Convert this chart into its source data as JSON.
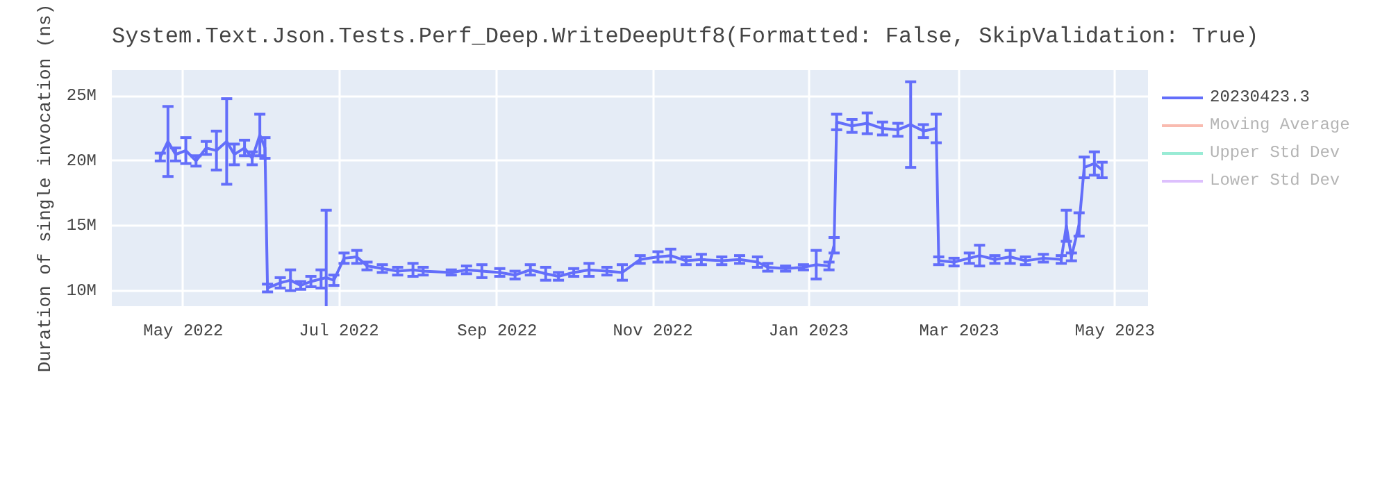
{
  "chart_data": {
    "type": "line",
    "title": "System.Text.Json.Tests.Perf_Deep.WriteDeepUtf8(Formatted: False, SkipValidation: True)",
    "ylabel": "Duration of single invocation (ns)",
    "xlim": [
      "2022-04-03",
      "2023-05-14"
    ],
    "ylim": [
      8800000,
      27000000
    ],
    "xticks": [
      {
        "value": "2022-05-01",
        "label": "May 2022"
      },
      {
        "value": "2022-07-01",
        "label": "Jul 2022"
      },
      {
        "value": "2022-09-01",
        "label": "Sep 2022"
      },
      {
        "value": "2022-11-01",
        "label": "Nov 2022"
      },
      {
        "value": "2023-01-01",
        "label": "Jan 2023"
      },
      {
        "value": "2023-03-01",
        "label": "Mar 2023"
      },
      {
        "value": "2023-05-01",
        "label": "May 2023"
      }
    ],
    "yticks": [
      {
        "value": 10000000,
        "label": "10M"
      },
      {
        "value": 15000000,
        "label": "15M"
      },
      {
        "value": 20000000,
        "label": "20M"
      },
      {
        "value": 25000000,
        "label": "25M"
      }
    ],
    "grid": true,
    "legend": "right",
    "marker": "none",
    "line_style": "solid",
    "x": [
      "2022-04-22",
      "2022-04-25",
      "2022-04-28",
      "2022-05-02",
      "2022-05-06",
      "2022-05-10",
      "2022-05-14",
      "2022-05-18",
      "2022-05-21",
      "2022-05-25",
      "2022-05-28",
      "2022-05-31",
      "2022-06-02",
      "2022-06-03",
      "2022-06-08",
      "2022-06-12",
      "2022-06-16",
      "2022-06-20",
      "2022-06-24",
      "2022-06-26",
      "2022-06-29",
      "2022-07-03",
      "2022-07-08",
      "2022-07-12",
      "2022-07-18",
      "2022-07-24",
      "2022-07-30",
      "2022-08-03",
      "2022-08-14",
      "2022-08-20",
      "2022-08-26",
      "2022-09-02",
      "2022-09-08",
      "2022-09-14",
      "2022-09-20",
      "2022-09-25",
      "2022-10-01",
      "2022-10-07",
      "2022-10-14",
      "2022-10-20",
      "2022-10-27",
      "2022-11-03",
      "2022-11-08",
      "2022-11-14",
      "2022-11-20",
      "2022-11-28",
      "2022-12-05",
      "2022-12-12",
      "2022-12-16",
      "2022-12-23",
      "2022-12-30",
      "2023-01-04",
      "2023-01-09",
      "2023-01-11",
      "2023-01-12",
      "2023-01-18",
      "2023-01-24",
      "2023-01-30",
      "2023-02-05",
      "2023-02-10",
      "2023-02-15",
      "2023-02-20",
      "2023-02-21",
      "2023-02-27",
      "2023-03-05",
      "2023-03-09",
      "2023-03-15",
      "2023-03-21",
      "2023-03-27",
      "2023-04-03",
      "2023-04-10",
      "2023-04-12",
      "2023-04-14",
      "2023-04-17",
      "2023-04-19",
      "2023-04-23",
      "2023-04-26"
    ],
    "series": [
      {
        "name": "20230423.3",
        "color": "#636efa",
        "values": [
          20300000,
          21500000,
          20500000,
          20800000,
          20000000,
          21000000,
          20800000,
          21500000,
          20500000,
          21000000,
          20200000,
          22000000,
          21000000,
          10200000,
          10600000,
          10800000,
          10400000,
          10700000,
          10900000,
          11000000,
          10800000,
          12500000,
          12600000,
          11900000,
          11700000,
          11500000,
          11600000,
          11500000,
          11400000,
          11600000,
          11500000,
          11400000,
          11200000,
          11600000,
          11300000,
          11100000,
          11400000,
          11600000,
          11500000,
          11400000,
          12400000,
          12600000,
          12700000,
          12300000,
          12400000,
          12300000,
          12400000,
          12200000,
          11800000,
          11700000,
          11800000,
          12000000,
          11900000,
          13500000,
          23000000,
          22700000,
          22900000,
          22500000,
          22400000,
          22800000,
          22300000,
          22500000,
          12300000,
          12200000,
          12500000,
          12700000,
          12400000,
          12600000,
          12300000,
          12500000,
          12400000,
          15000000,
          12600000,
          15100000,
          19500000,
          19800000,
          19300000
        ],
        "errors": [
          300000,
          2700000,
          500000,
          1000000,
          400000,
          500000,
          1500000,
          3300000,
          800000,
          600000,
          500000,
          1600000,
          800000,
          300000,
          400000,
          800000,
          300000,
          400000,
          700000,
          5200000,
          400000,
          400000,
          500000,
          300000,
          300000,
          300000,
          500000,
          300000,
          200000,
          300000,
          500000,
          300000,
          300000,
          400000,
          500000,
          300000,
          300000,
          500000,
          300000,
          600000,
          300000,
          400000,
          500000,
          300000,
          400000,
          300000,
          300000,
          400000,
          300000,
          200000,
          200000,
          1100000,
          300000,
          600000,
          600000,
          500000,
          800000,
          500000,
          500000,
          3300000,
          500000,
          1100000,
          300000,
          300000,
          400000,
          800000,
          300000,
          500000,
          300000,
          300000,
          300000,
          1200000,
          300000,
          900000,
          800000,
          900000,
          600000
        ]
      },
      {
        "name": "Moving Average",
        "color": "#ef553b",
        "values": [
          null,
          null,
          null,
          null,
          null,
          null,
          null,
          null,
          null,
          null,
          null,
          null,
          null,
          null,
          null,
          null,
          null,
          null,
          null,
          null,
          null,
          null,
          null,
          null,
          null,
          null,
          null,
          null,
          null,
          null,
          null,
          null,
          null,
          null,
          null,
          null,
          null,
          null,
          null,
          null,
          null,
          null,
          null,
          null,
          null,
          null,
          null,
          null,
          null,
          null,
          null,
          null,
          null,
          null,
          null,
          null,
          null,
          null,
          null,
          null,
          null,
          null,
          null,
          null,
          null,
          null,
          null,
          null,
          null,
          null,
          null,
          null,
          null,
          null,
          null,
          null,
          null
        ]
      },
      {
        "name": "Upper Std Dev",
        "color": "#00cc96",
        "values": [
          null,
          null,
          null,
          null,
          null,
          null,
          null,
          null,
          null,
          null,
          null,
          null,
          null,
          null,
          null,
          null,
          null,
          null,
          null,
          null,
          null,
          null,
          null,
          null,
          null,
          null,
          null,
          null,
          null,
          null,
          null,
          null,
          null,
          null,
          null,
          null,
          null,
          null,
          null,
          null,
          null,
          null,
          null,
          null,
          null,
          null,
          null,
          null,
          null,
          null,
          null,
          null,
          null,
          null,
          null,
          null,
          null,
          null,
          null,
          null,
          null,
          null,
          null,
          null,
          null,
          null,
          null,
          null,
          null,
          null,
          null,
          null,
          null,
          null,
          null,
          null,
          null
        ]
      },
      {
        "name": "Lower Std Dev",
        "color": "#ab63fa",
        "values": [
          null,
          null,
          null,
          null,
          null,
          null,
          null,
          null,
          null,
          null,
          null,
          null,
          null,
          null,
          null,
          null,
          null,
          null,
          null,
          null,
          null,
          null,
          null,
          null,
          null,
          null,
          null,
          null,
          null,
          null,
          null,
          null,
          null,
          null,
          null,
          null,
          null,
          null,
          null,
          null,
          null,
          null,
          null,
          null,
          null,
          null,
          null,
          null,
          null,
          null,
          null,
          null,
          null,
          null,
          null,
          null,
          null,
          null,
          null,
          null,
          null,
          null,
          null,
          null,
          null,
          null,
          null,
          null,
          null,
          null,
          null,
          null,
          null,
          null,
          null,
          null,
          null
        ]
      }
    ]
  }
}
